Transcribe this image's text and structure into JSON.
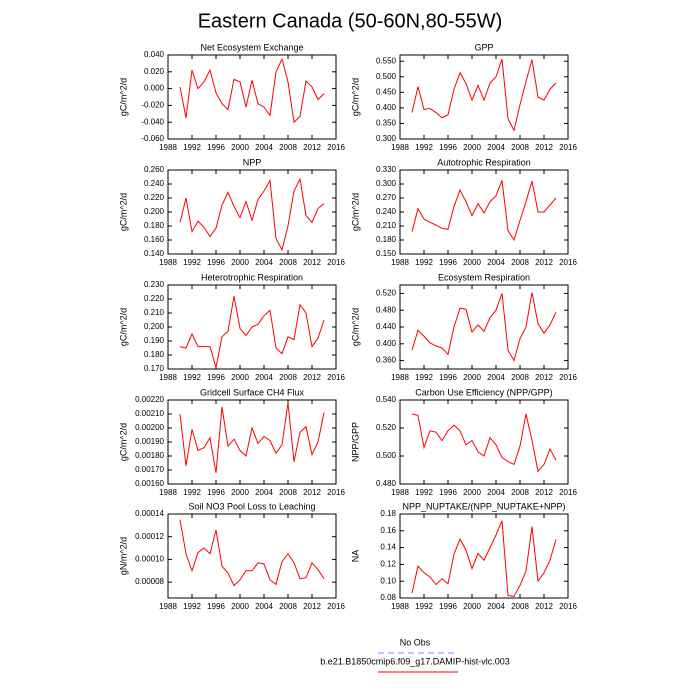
{
  "title": "Eastern Canada (50-60N,80-55W)",
  "legend": [
    {
      "name": "No Obs",
      "color": "#8c8cff",
      "dash": true
    },
    {
      "name": "b.e21.B1850cmip6.f09_g17.DAMIP-hist-vlc.003",
      "color": "#ff0000",
      "dash": false
    }
  ],
  "chart_data": [
    {
      "type": "line",
      "title": "Net Ecosystem Exchange",
      "ylabel": "gC/m^2/d",
      "color": "#ff0000",
      "x": [
        1990,
        1991,
        1992,
        1993,
        1994,
        1995,
        1996,
        1997,
        1998,
        1999,
        2000,
        2001,
        2002,
        2003,
        2004,
        2005,
        2006,
        2007,
        2008,
        2009,
        2010,
        2011,
        2012,
        2013,
        2014
      ],
      "values": [
        0.002,
        -0.035,
        0.022,
        0.0,
        0.008,
        0.022,
        -0.005,
        -0.018,
        -0.025,
        0.011,
        0.008,
        -0.022,
        0.01,
        -0.018,
        -0.022,
        -0.032,
        0.02,
        0.035,
        0.008,
        -0.04,
        -0.033,
        0.009,
        0.002,
        -0.013,
        -0.006
      ],
      "xlim": [
        1988,
        2016
      ],
      "xticks": [
        1988,
        1992,
        1996,
        2000,
        2004,
        2008,
        2012,
        2016
      ],
      "ylim": [
        -0.06,
        0.04
      ],
      "yticks": [
        {
          "value": -0.06,
          "label": "-0.060"
        },
        {
          "value": -0.04,
          "label": "-0.040"
        },
        {
          "value": -0.02,
          "label": "-0.020"
        },
        {
          "value": 0,
          "label": "0.000"
        },
        {
          "value": 0.02,
          "label": "0.020"
        },
        {
          "value": 0.04,
          "label": "0.040"
        }
      ]
    },
    {
      "type": "line",
      "title": "GPP",
      "ylabel": "gC/m^2/d",
      "color": "#ff0000",
      "x": [
        1990,
        1991,
        1992,
        1993,
        1994,
        1995,
        1996,
        1997,
        1998,
        1999,
        2000,
        2001,
        2002,
        2003,
        2004,
        2005,
        2006,
        2007,
        2008,
        2009,
        2010,
        2011,
        2012,
        2013,
        2014
      ],
      "values": [
        0.385,
        0.468,
        0.395,
        0.398,
        0.385,
        0.368,
        0.378,
        0.46,
        0.513,
        0.478,
        0.425,
        0.472,
        0.425,
        0.48,
        0.5,
        0.557,
        0.365,
        0.328,
        0.41,
        0.485,
        0.555,
        0.435,
        0.425,
        0.46,
        0.48
      ],
      "xlim": [
        1988,
        2016
      ],
      "xticks": [
        1988,
        1992,
        1996,
        2000,
        2004,
        2008,
        2012,
        2016
      ],
      "ylim": [
        0.3,
        0.57
      ],
      "yticks": [
        {
          "value": 0.3,
          "label": "0.300"
        },
        {
          "value": 0.35,
          "label": "0.350"
        },
        {
          "value": 0.4,
          "label": "0.400"
        },
        {
          "value": 0.45,
          "label": "0.450"
        },
        {
          "value": 0.5,
          "label": "0.500"
        },
        {
          "value": 0.55,
          "label": "0.550"
        }
      ]
    },
    {
      "type": "line",
      "title": "NPP",
      "ylabel": "gC/m^2/d",
      "color": "#ff0000",
      "x": [
        1990,
        1991,
        1992,
        1993,
        1994,
        1995,
        1996,
        1997,
        1998,
        1999,
        2000,
        2001,
        2002,
        2003,
        2004,
        2005,
        2006,
        2007,
        2008,
        2009,
        2010,
        2011,
        2012,
        2013,
        2014
      ],
      "values": [
        0.185,
        0.22,
        0.172,
        0.187,
        0.178,
        0.165,
        0.177,
        0.21,
        0.228,
        0.208,
        0.192,
        0.215,
        0.188,
        0.218,
        0.23,
        0.245,
        0.162,
        0.146,
        0.18,
        0.23,
        0.247,
        0.195,
        0.185,
        0.205,
        0.212
      ],
      "xlim": [
        1988,
        2016
      ],
      "xticks": [
        1988,
        1992,
        1996,
        2000,
        2004,
        2008,
        2012,
        2016
      ],
      "ylim": [
        0.14,
        0.26
      ],
      "yticks": [
        {
          "value": 0.14,
          "label": "0.140"
        },
        {
          "value": 0.16,
          "label": "0.160"
        },
        {
          "value": 0.18,
          "label": "0.180"
        },
        {
          "value": 0.2,
          "label": "0.200"
        },
        {
          "value": 0.22,
          "label": "0.220"
        },
        {
          "value": 0.24,
          "label": "0.240"
        },
        {
          "value": 0.26,
          "label": "0.260"
        }
      ]
    },
    {
      "type": "line",
      "title": "Autotrophic Respiration",
      "ylabel": "gC/m^2/d",
      "color": "#ff0000",
      "x": [
        1990,
        1991,
        1992,
        1993,
        1994,
        1995,
        1996,
        1997,
        1998,
        1999,
        2000,
        2001,
        2002,
        2003,
        2004,
        2005,
        2006,
        2007,
        2008,
        2009,
        2010,
        2011,
        2012,
        2013,
        2014
      ],
      "values": [
        0.198,
        0.247,
        0.225,
        0.218,
        0.212,
        0.205,
        0.203,
        0.252,
        0.287,
        0.262,
        0.232,
        0.258,
        0.238,
        0.262,
        0.275,
        0.308,
        0.2,
        0.18,
        0.222,
        0.262,
        0.306,
        0.24,
        0.24,
        0.255,
        0.27
      ],
      "xlim": [
        1988,
        2016
      ],
      "xticks": [
        1988,
        1992,
        1996,
        2000,
        2004,
        2008,
        2012,
        2016
      ],
      "ylim": [
        0.15,
        0.33
      ],
      "yticks": [
        {
          "value": 0.15,
          "label": "0.150"
        },
        {
          "value": 0.18,
          "label": "0.180"
        },
        {
          "value": 0.21,
          "label": "0.210"
        },
        {
          "value": 0.24,
          "label": "0.240"
        },
        {
          "value": 0.27,
          "label": "0.270"
        },
        {
          "value": 0.3,
          "label": "0.300"
        },
        {
          "value": 0.33,
          "label": "0.330"
        }
      ]
    },
    {
      "type": "line",
      "title": "Heterotrophic Respiration",
      "ylabel": "gC/m^2/d",
      "color": "#ff0000",
      "x": [
        1990,
        1991,
        1992,
        1993,
        1994,
        1995,
        1996,
        1997,
        1998,
        1999,
        2000,
        2001,
        2002,
        2003,
        2004,
        2005,
        2006,
        2007,
        2008,
        2009,
        2010,
        2011,
        2012,
        2013,
        2014
      ],
      "values": [
        0.186,
        0.185,
        0.195,
        0.186,
        0.186,
        0.186,
        0.171,
        0.193,
        0.197,
        0.222,
        0.199,
        0.194,
        0.2,
        0.202,
        0.208,
        0.212,
        0.185,
        0.181,
        0.193,
        0.191,
        0.216,
        0.21,
        0.186,
        0.192,
        0.205
      ],
      "xlim": [
        1988,
        2016
      ],
      "xticks": [
        1988,
        1992,
        1996,
        2000,
        2004,
        2008,
        2012,
        2016
      ],
      "ylim": [
        0.17,
        0.23
      ],
      "yticks": [
        {
          "value": 0.17,
          "label": "0.170"
        },
        {
          "value": 0.18,
          "label": "0.180"
        },
        {
          "value": 0.19,
          "label": "0.190"
        },
        {
          "value": 0.2,
          "label": "0.200"
        },
        {
          "value": 0.21,
          "label": "0.210"
        },
        {
          "value": 0.22,
          "label": "0.220"
        },
        {
          "value": 0.23,
          "label": "0.230"
        }
      ]
    },
    {
      "type": "line",
      "title": "Ecosystem Respiration",
      "ylabel": "gC/m^2/d",
      "color": "#ff0000",
      "x": [
        1990,
        1991,
        1992,
        1993,
        1994,
        1995,
        1996,
        1997,
        1998,
        1999,
        2000,
        2001,
        2002,
        2003,
        2004,
        2005,
        2006,
        2007,
        2008,
        2009,
        2010,
        2011,
        2012,
        2013,
        2014
      ],
      "values": [
        0.385,
        0.432,
        0.418,
        0.402,
        0.395,
        0.39,
        0.375,
        0.44,
        0.485,
        0.482,
        0.428,
        0.445,
        0.43,
        0.462,
        0.48,
        0.52,
        0.385,
        0.36,
        0.412,
        0.44,
        0.522,
        0.448,
        0.425,
        0.445,
        0.475
      ],
      "xlim": [
        1988,
        2016
      ],
      "xticks": [
        1988,
        1992,
        1996,
        2000,
        2004,
        2008,
        2012,
        2016
      ],
      "ylim": [
        0.34,
        0.54
      ],
      "yticks": [
        {
          "value": 0.36,
          "label": "0.360"
        },
        {
          "value": 0.4,
          "label": "0.400"
        },
        {
          "value": 0.44,
          "label": "0.440"
        },
        {
          "value": 0.48,
          "label": "0.480"
        },
        {
          "value": 0.52,
          "label": "0.520"
        }
      ]
    },
    {
      "type": "line",
      "title": "Gridcell Surface CH4 Flux",
      "ylabel": "gC/m^2/d",
      "color": "#ff0000",
      "x": [
        1990,
        1991,
        1992,
        1993,
        1994,
        1995,
        1996,
        1997,
        1998,
        1999,
        2000,
        2001,
        2002,
        2003,
        2004,
        2005,
        2006,
        2007,
        2008,
        2009,
        2010,
        2011,
        2012,
        2013,
        2014
      ],
      "values": [
        0.0021,
        0.00173,
        0.00199,
        0.00184,
        0.00186,
        0.00193,
        0.00168,
        0.00215,
        0.00187,
        0.00192,
        0.00184,
        0.0018,
        0.002,
        0.00189,
        0.00194,
        0.00191,
        0.00182,
        0.00188,
        0.00218,
        0.00176,
        0.00197,
        0.00201,
        0.00181,
        0.0019,
        0.00211
      ],
      "xlim": [
        1988,
        2016
      ],
      "xticks": [
        1988,
        1992,
        1996,
        2000,
        2004,
        2008,
        2012,
        2016
      ],
      "ylim": [
        0.0016,
        0.0022
      ],
      "yticks": [
        {
          "value": 0.0016,
          "label": "0.00160"
        },
        {
          "value": 0.0017,
          "label": "0.00170"
        },
        {
          "value": 0.0018,
          "label": "0.00180"
        },
        {
          "value": 0.0019,
          "label": "0.00190"
        },
        {
          "value": 0.002,
          "label": "0.00200"
        },
        {
          "value": 0.0021,
          "label": "0.00210"
        },
        {
          "value": 0.0022,
          "label": "0.00220"
        }
      ]
    },
    {
      "type": "line",
      "title": "Carbon Use Efficiency (NPP/GPP)",
      "ylabel": "NPP/GPP",
      "color": "#ff0000",
      "x": [
        1990,
        1991,
        1992,
        1993,
        1994,
        1995,
        1996,
        1997,
        1998,
        1999,
        2000,
        2001,
        2002,
        2003,
        2004,
        2005,
        2006,
        2007,
        2008,
        2009,
        2010,
        2011,
        2012,
        2013,
        2014
      ],
      "values": [
        0.53,
        0.529,
        0.506,
        0.518,
        0.517,
        0.511,
        0.518,
        0.522,
        0.518,
        0.508,
        0.511,
        0.503,
        0.5,
        0.513,
        0.508,
        0.499,
        0.496,
        0.494,
        0.507,
        0.53,
        0.511,
        0.489,
        0.494,
        0.505,
        0.497
      ],
      "xlim": [
        1988,
        2016
      ],
      "xticks": [
        1988,
        1992,
        1996,
        2000,
        2004,
        2008,
        2012,
        2016
      ],
      "ylim": [
        0.48,
        0.54
      ],
      "yticks": [
        {
          "value": 0.48,
          "label": "0.480"
        },
        {
          "value": 0.5,
          "label": "0.500"
        },
        {
          "value": 0.52,
          "label": "0.520"
        },
        {
          "value": 0.54,
          "label": "0.540"
        }
      ]
    },
    {
      "type": "line",
      "title": "Soil NO3 Pool Loss to Leaching",
      "ylabel": "gN/m^2/d",
      "color": "#ff0000",
      "x": [
        1990,
        1991,
        1992,
        1993,
        1994,
        1995,
        1996,
        1997,
        1998,
        1999,
        2000,
        2001,
        2002,
        2003,
        2004,
        2005,
        2006,
        2007,
        2008,
        2009,
        2010,
        2011,
        2012,
        2013,
        2014
      ],
      "values": [
        0.000135,
        0.000105,
        9e-05,
        0.000106,
        0.00011,
        0.000105,
        0.000126,
        9.4e-05,
        8.8e-05,
        7.7e-05,
        8.2e-05,
        9e-05,
        9e-05,
        9.7e-05,
        9.6e-05,
        8.2e-05,
        7.8e-05,
        9.8e-05,
        0.000105,
        9.7e-05,
        8.3e-05,
        8.4e-05,
        9.7e-05,
        9.1e-05,
        8.3e-05
      ],
      "xlim": [
        1988,
        2016
      ],
      "xticks": [
        1988,
        1992,
        1996,
        2000,
        2004,
        2008,
        2012,
        2016
      ],
      "ylim": [
        6.6e-05,
        0.00014
      ],
      "yticks": [
        {
          "value": 8e-05,
          "label": "0.00008"
        },
        {
          "value": 0.0001,
          "label": "0.00010"
        },
        {
          "value": 0.00012,
          "label": "0.00012"
        },
        {
          "value": 0.00014,
          "label": "0.00014"
        }
      ]
    },
    {
      "type": "line",
      "title": "NPP_NUPTAKE/(NPP_NUPTAKE+NPP)",
      "ylabel": "NA",
      "color": "#ff0000",
      "x": [
        1990,
        1991,
        1992,
        1993,
        1994,
        1995,
        1996,
        1997,
        1998,
        1999,
        2000,
        2001,
        2002,
        2003,
        2004,
        2005,
        2006,
        2007,
        2008,
        2009,
        2010,
        2011,
        2012,
        2013,
        2014
      ],
      "values": [
        0.086,
        0.118,
        0.11,
        0.105,
        0.096,
        0.103,
        0.097,
        0.132,
        0.15,
        0.137,
        0.115,
        0.133,
        0.125,
        0.14,
        0.155,
        0.172,
        0.083,
        0.082,
        0.095,
        0.112,
        0.165,
        0.1,
        0.11,
        0.125,
        0.15
      ],
      "xlim": [
        1988,
        2016
      ],
      "xticks": [
        1988,
        1992,
        1996,
        2000,
        2004,
        2008,
        2012,
        2016
      ],
      "ylim": [
        0.08,
        0.18
      ],
      "yticks": [
        {
          "value": 0.08,
          "label": "0.08"
        },
        {
          "value": 0.1,
          "label": "0.10"
        },
        {
          "value": 0.12,
          "label": "0.12"
        },
        {
          "value": 0.14,
          "label": "0.14"
        },
        {
          "value": 0.16,
          "label": "0.16"
        },
        {
          "value": 0.18,
          "label": "0.18"
        }
      ]
    }
  ]
}
